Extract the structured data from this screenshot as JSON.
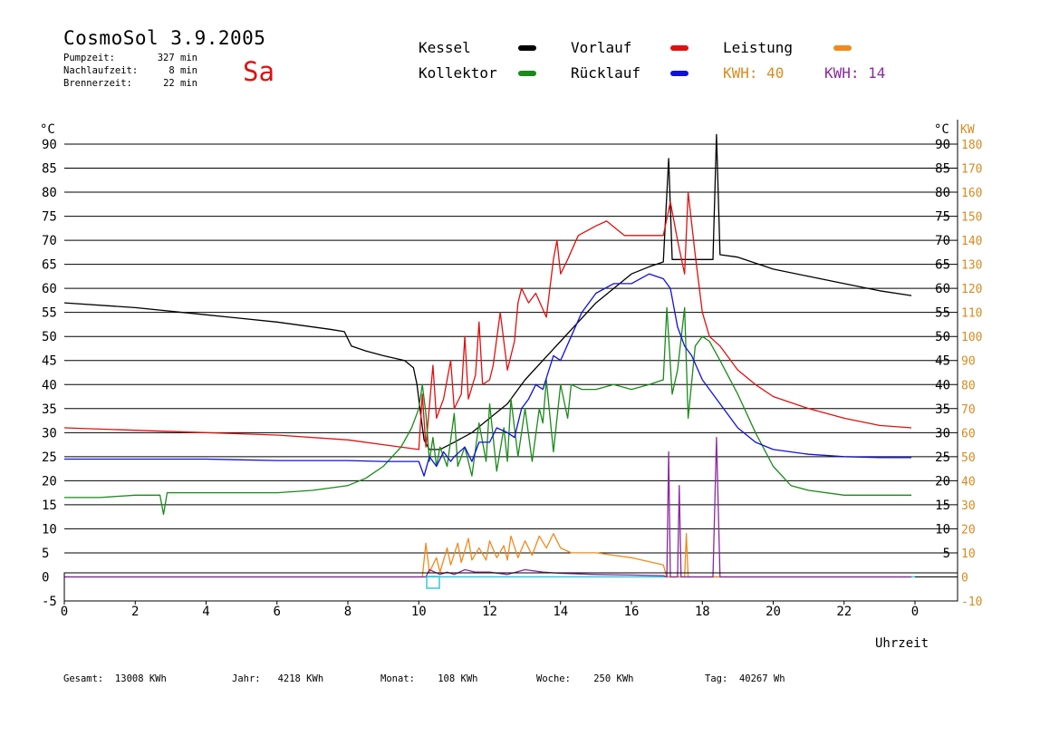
{
  "header": {
    "title": "CosmoSol 3.9.2005",
    "day": "Sa",
    "stats": [
      {
        "label": "Pumpzeit:",
        "value": "327 min"
      },
      {
        "label": "Nachlaufzeit:",
        "value": "8 min"
      },
      {
        "label": "Brennerzeit:",
        "value": "22 min"
      }
    ]
  },
  "legend": {
    "kessel": {
      "label": "Kessel",
      "color": "#000000"
    },
    "vorlauf": {
      "label": "Vorlauf",
      "color": "#e01010"
    },
    "leistung": {
      "label": "Leistung",
      "color": "#f08a1c"
    },
    "kollektor": {
      "label": "Kollektor",
      "color": "#1a8a1a"
    },
    "ruecklauf": {
      "label": "Rücklauf",
      "color": "#1010e0"
    },
    "kwh_orange": {
      "label": "KWH:",
      "value": "40",
      "color": "#d88a20"
    },
    "kwh_purple": {
      "label": "KWH:",
      "value": "14",
      "color": "#8a2aa0"
    }
  },
  "footer": [
    {
      "label": "Gesamt:",
      "value": "13008 KWh"
    },
    {
      "label": "Jahr:",
      "value": "4218 KWh"
    },
    {
      "label": "Monat:",
      "value": "108 KWh"
    },
    {
      "label": "Woche:",
      "value": "250 KWh"
    },
    {
      "label": "Tag:",
      "value": "40267 Wh"
    }
  ],
  "chart_data": {
    "type": "line",
    "xlabel": "Uhrzeit",
    "ylabel_left": "°C",
    "ylabel_right_1": "°C",
    "ylabel_right_2": "KW",
    "xlim": [
      0,
      24
    ],
    "ylim": [
      -5,
      90
    ],
    "ylim_kw": [
      -10,
      180
    ],
    "x_ticks": [
      "0",
      "2",
      "4",
      "6",
      "8",
      "10",
      "12",
      "14",
      "16",
      "18",
      "20",
      "22",
      "0"
    ],
    "y_ticks_left": [
      "-5",
      "0",
      "5",
      "10",
      "15",
      "20",
      "25",
      "30",
      "35",
      "40",
      "45",
      "50",
      "55",
      "60",
      "65",
      "70",
      "75",
      "80",
      "85",
      "90"
    ],
    "y_ticks_right": [
      "5",
      "10",
      "15",
      "20",
      "25",
      "30",
      "35",
      "40",
      "45",
      "50",
      "55",
      "60",
      "65",
      "70",
      "75",
      "80",
      "85",
      "90"
    ],
    "y_ticks_kw": [
      "-10",
      "0",
      "10",
      "20",
      "30",
      "40",
      "50",
      "60",
      "70",
      "80",
      "90",
      "100",
      "110",
      "120",
      "130",
      "140",
      "150",
      "160",
      "170",
      "180"
    ],
    "grid": true,
    "series": [
      {
        "name": "Kessel",
        "color": "#000000",
        "points": [
          [
            0,
            57
          ],
          [
            2,
            56
          ],
          [
            4,
            54.5
          ],
          [
            6,
            53
          ],
          [
            7.5,
            51.5
          ],
          [
            7.9,
            51
          ],
          [
            8.1,
            48
          ],
          [
            8.5,
            47
          ],
          [
            9,
            46
          ],
          [
            9.6,
            45
          ],
          [
            9.85,
            43.5
          ],
          [
            9.95,
            40
          ],
          [
            10.05,
            34
          ],
          [
            10.15,
            28.5
          ],
          [
            10.3,
            26.5
          ],
          [
            10.6,
            26.5
          ],
          [
            11,
            28
          ],
          [
            11.5,
            30
          ],
          [
            12,
            33
          ],
          [
            12.5,
            36
          ],
          [
            13,
            41
          ],
          [
            13.5,
            45
          ],
          [
            14,
            49
          ],
          [
            14.5,
            53
          ],
          [
            15,
            57
          ],
          [
            15.5,
            60
          ],
          [
            16,
            63
          ],
          [
            16.5,
            64.5
          ],
          [
            16.9,
            65.5
          ],
          [
            17.05,
            87
          ],
          [
            17.15,
            66
          ],
          [
            17.6,
            66
          ],
          [
            18.3,
            66
          ],
          [
            18.4,
            92
          ],
          [
            18.5,
            67
          ],
          [
            19,
            66.5
          ],
          [
            20,
            64
          ],
          [
            21,
            62.5
          ],
          [
            22,
            61
          ],
          [
            23,
            59.5
          ],
          [
            23.9,
            58.5
          ]
        ]
      },
      {
        "name": "Vorlauf",
        "color": "#e01010",
        "points": [
          [
            0,
            31
          ],
          [
            2,
            30.5
          ],
          [
            4,
            30
          ],
          [
            6,
            29.5
          ],
          [
            8,
            28.5
          ],
          [
            9,
            27.5
          ],
          [
            10,
            26.5
          ],
          [
            10.1,
            38
          ],
          [
            10.2,
            27
          ],
          [
            10.4,
            44
          ],
          [
            10.5,
            33
          ],
          [
            10.7,
            37
          ],
          [
            10.9,
            45
          ],
          [
            11,
            35
          ],
          [
            11.2,
            38
          ],
          [
            11.3,
            50
          ],
          [
            11.4,
            37
          ],
          [
            11.6,
            42
          ],
          [
            11.7,
            53
          ],
          [
            11.8,
            40
          ],
          [
            12,
            41
          ],
          [
            12.1,
            44
          ],
          [
            12.3,
            55
          ],
          [
            12.5,
            43
          ],
          [
            12.7,
            49
          ],
          [
            12.8,
            57
          ],
          [
            12.9,
            60
          ],
          [
            13.1,
            57
          ],
          [
            13.3,
            59
          ],
          [
            13.6,
            54
          ],
          [
            13.8,
            66
          ],
          [
            13.9,
            70
          ],
          [
            14,
            63
          ],
          [
            14.2,
            66
          ],
          [
            14.5,
            71
          ],
          [
            15,
            73
          ],
          [
            15.3,
            74
          ],
          [
            15.8,
            71
          ],
          [
            16,
            71
          ],
          [
            16.5,
            71
          ],
          [
            16.9,
            71
          ],
          [
            17.1,
            78
          ],
          [
            17.3,
            70
          ],
          [
            17.5,
            63
          ],
          [
            17.6,
            80
          ],
          [
            17.8,
            67
          ],
          [
            18,
            55
          ],
          [
            18.2,
            50
          ],
          [
            18.5,
            48
          ],
          [
            19,
            43
          ],
          [
            19.5,
            40
          ],
          [
            20,
            37.5
          ],
          [
            21,
            35
          ],
          [
            22,
            33
          ],
          [
            23,
            31.5
          ],
          [
            23.9,
            31
          ]
        ]
      },
      {
        "name": "Kollektor",
        "color": "#1a8a1a",
        "points": [
          [
            0,
            16.5
          ],
          [
            1,
            16.5
          ],
          [
            2,
            17
          ],
          [
            2.7,
            17
          ],
          [
            2.8,
            13
          ],
          [
            2.9,
            17.5
          ],
          [
            3.5,
            17.5
          ],
          [
            4,
            17.5
          ],
          [
            5,
            17.5
          ],
          [
            6,
            17.5
          ],
          [
            7,
            18
          ],
          [
            8,
            19
          ],
          [
            8.5,
            20.5
          ],
          [
            9,
            23
          ],
          [
            9.5,
            27
          ],
          [
            9.8,
            31
          ],
          [
            10,
            35
          ],
          [
            10.1,
            40
          ],
          [
            10.2,
            34
          ],
          [
            10.3,
            24
          ],
          [
            10.4,
            29
          ],
          [
            10.5,
            23
          ],
          [
            10.6,
            27
          ],
          [
            10.8,
            23
          ],
          [
            11,
            34
          ],
          [
            11.1,
            23
          ],
          [
            11.3,
            27
          ],
          [
            11.5,
            21
          ],
          [
            11.7,
            32
          ],
          [
            11.9,
            24
          ],
          [
            12,
            36
          ],
          [
            12.2,
            22
          ],
          [
            12.4,
            31
          ],
          [
            12.5,
            24
          ],
          [
            12.6,
            37
          ],
          [
            12.8,
            25
          ],
          [
            13,
            35
          ],
          [
            13.2,
            24
          ],
          [
            13.4,
            35
          ],
          [
            13.5,
            32
          ],
          [
            13.6,
            41
          ],
          [
            13.8,
            26
          ],
          [
            14,
            40
          ],
          [
            14.2,
            33
          ],
          [
            14.3,
            40
          ],
          [
            14.6,
            39
          ],
          [
            15,
            39
          ],
          [
            15.5,
            40
          ],
          [
            16,
            39
          ],
          [
            16.5,
            40
          ],
          [
            16.9,
            41
          ],
          [
            17,
            56
          ],
          [
            17.15,
            38
          ],
          [
            17.3,
            43
          ],
          [
            17.5,
            56
          ],
          [
            17.6,
            33
          ],
          [
            17.8,
            48
          ],
          [
            18,
            50
          ],
          [
            18.2,
            49
          ],
          [
            18.5,
            45
          ],
          [
            19,
            38
          ],
          [
            19.5,
            30
          ],
          [
            20,
            23
          ],
          [
            20.5,
            19
          ],
          [
            21,
            18
          ],
          [
            22,
            17
          ],
          [
            23,
            17
          ],
          [
            23.9,
            17
          ]
        ]
      },
      {
        "name": "Rücklauf",
        "color": "#1010e0",
        "points": [
          [
            0,
            24.5
          ],
          [
            2,
            24.5
          ],
          [
            4,
            24.5
          ],
          [
            6,
            24.2
          ],
          [
            8,
            24.2
          ],
          [
            9,
            24
          ],
          [
            10,
            24
          ],
          [
            10.15,
            21
          ],
          [
            10.3,
            25
          ],
          [
            10.5,
            23
          ],
          [
            10.7,
            26
          ],
          [
            10.9,
            24
          ],
          [
            11,
            25
          ],
          [
            11.3,
            27
          ],
          [
            11.5,
            24
          ],
          [
            11.7,
            28
          ],
          [
            12,
            28
          ],
          [
            12.2,
            31
          ],
          [
            12.5,
            30
          ],
          [
            12.7,
            29
          ],
          [
            12.9,
            35
          ],
          [
            13.1,
            37
          ],
          [
            13.3,
            40
          ],
          [
            13.5,
            39
          ],
          [
            13.8,
            46
          ],
          [
            14,
            45
          ],
          [
            14.3,
            50
          ],
          [
            14.6,
            55
          ],
          [
            15,
            59
          ],
          [
            15.5,
            61
          ],
          [
            16,
            61
          ],
          [
            16.5,
            63
          ],
          [
            16.9,
            62
          ],
          [
            17.1,
            60
          ],
          [
            17.3,
            52
          ],
          [
            17.5,
            48
          ],
          [
            17.7,
            46
          ],
          [
            18,
            41
          ],
          [
            18.5,
            36
          ],
          [
            19,
            31
          ],
          [
            19.5,
            28
          ],
          [
            20,
            26.5
          ],
          [
            21,
            25.5
          ],
          [
            22,
            25
          ],
          [
            23,
            24.8
          ],
          [
            23.9,
            24.8
          ]
        ]
      },
      {
        "name": "Leistung",
        "color": "#f08a1c",
        "unit": "KW",
        "points": [
          [
            0,
            0
          ],
          [
            10.1,
            0
          ],
          [
            10.2,
            14
          ],
          [
            10.3,
            2
          ],
          [
            10.5,
            8
          ],
          [
            10.6,
            2
          ],
          [
            10.8,
            12
          ],
          [
            10.9,
            5
          ],
          [
            11.1,
            14
          ],
          [
            11.2,
            6
          ],
          [
            11.4,
            16
          ],
          [
            11.5,
            7
          ],
          [
            11.7,
            12
          ],
          [
            11.9,
            7
          ],
          [
            12,
            15
          ],
          [
            12.2,
            8
          ],
          [
            12.4,
            13
          ],
          [
            12.5,
            7
          ],
          [
            12.6,
            17
          ],
          [
            12.8,
            8
          ],
          [
            13,
            15
          ],
          [
            13.2,
            9
          ],
          [
            13.4,
            17
          ],
          [
            13.6,
            12
          ],
          [
            13.8,
            18
          ],
          [
            14,
            12
          ],
          [
            14.3,
            10
          ],
          [
            15,
            10
          ],
          [
            16,
            8
          ],
          [
            16.9,
            5
          ],
          [
            17,
            0
          ],
          [
            17.5,
            0
          ],
          [
            17.55,
            18
          ],
          [
            17.6,
            0
          ],
          [
            23.9,
            0
          ]
        ]
      },
      {
        "name": "KWH 14",
        "color": "#8a2aa0",
        "unit": "KW",
        "points": [
          [
            0,
            0
          ],
          [
            10.2,
            0
          ],
          [
            10.3,
            3
          ],
          [
            10.6,
            1
          ],
          [
            10.8,
            2
          ],
          [
            11,
            1
          ],
          [
            11.3,
            3
          ],
          [
            11.6,
            2
          ],
          [
            12,
            2
          ],
          [
            12.5,
            1
          ],
          [
            13,
            3
          ],
          [
            13.5,
            2
          ],
          [
            14,
            1.5
          ],
          [
            15,
            1
          ],
          [
            16,
            0.8
          ],
          [
            16.9,
            0.5
          ],
          [
            17,
            0
          ],
          [
            17.05,
            52
          ],
          [
            17.1,
            0
          ],
          [
            17.3,
            0
          ],
          [
            17.35,
            38
          ],
          [
            17.4,
            0
          ],
          [
            18.3,
            0
          ],
          [
            18.4,
            58
          ],
          [
            18.5,
            0
          ],
          [
            23.9,
            0
          ]
        ]
      }
    ]
  }
}
